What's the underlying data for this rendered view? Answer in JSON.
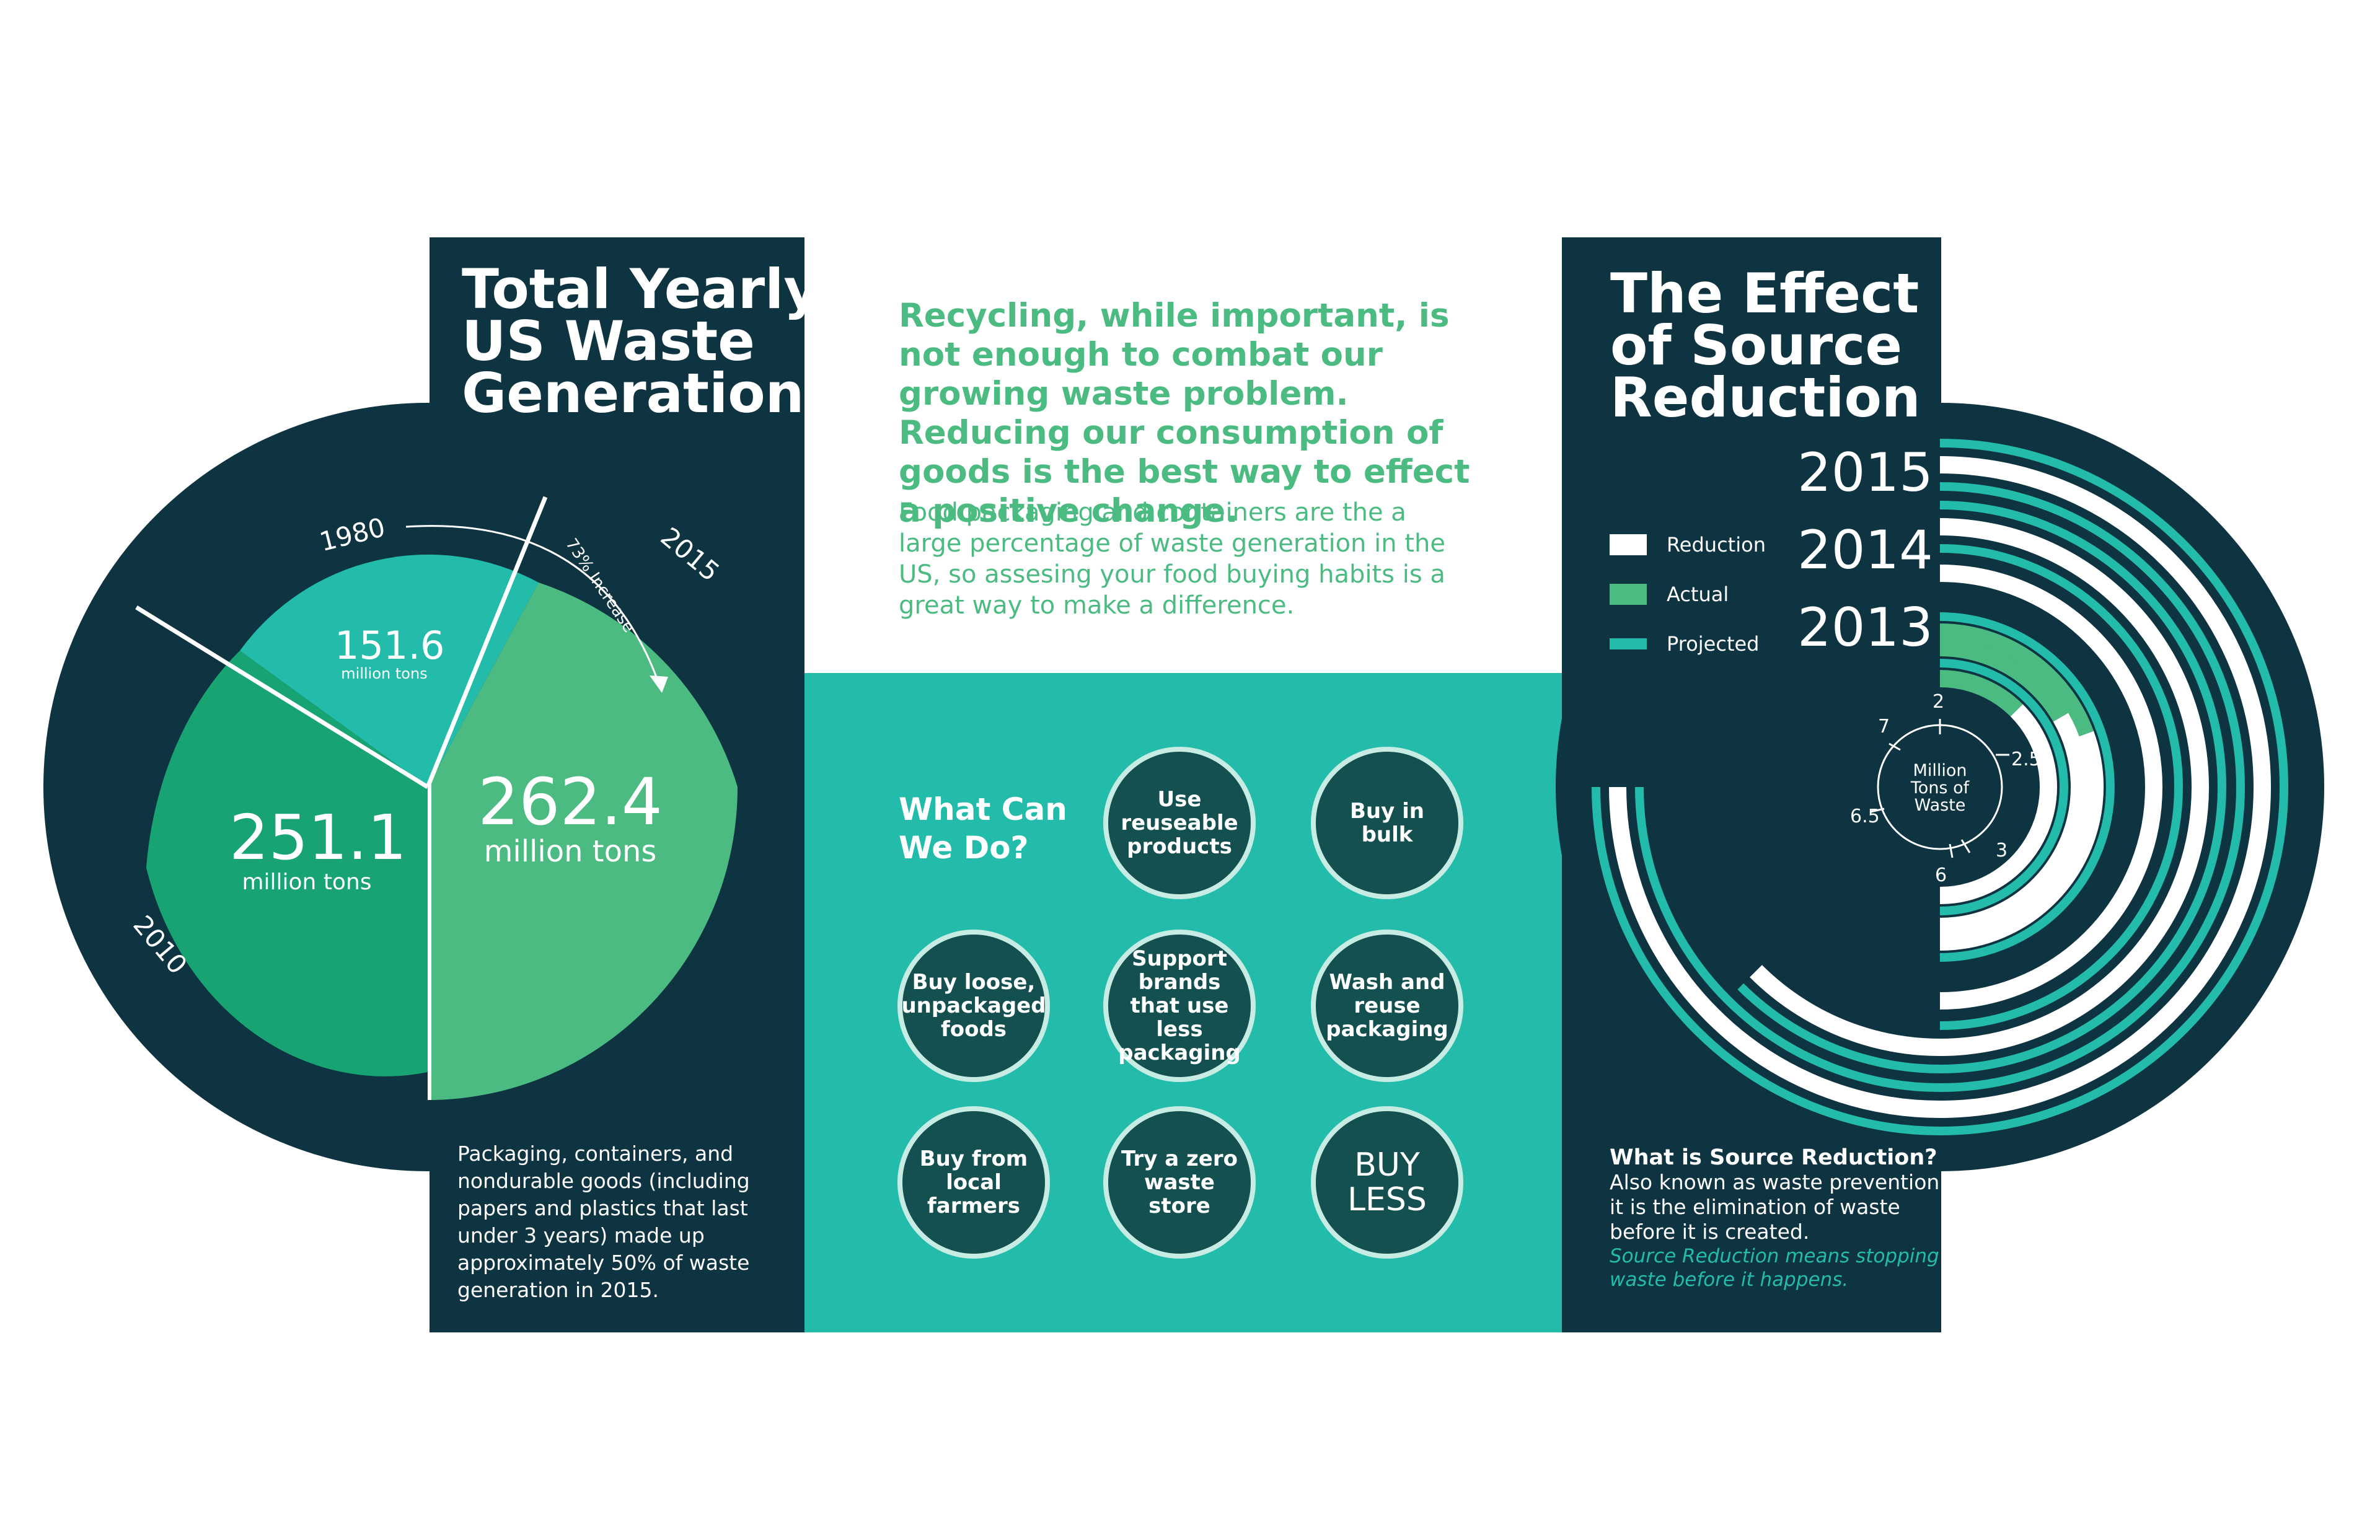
{
  "left_panel": {
    "title_lines": [
      "Total Yearly",
      "US Waste",
      "Generation"
    ],
    "pie": {
      "slices": [
        {
          "year": "1980",
          "value_label": "151.6",
          "unit_label": "million tons",
          "color": "#23bba9"
        },
        {
          "year": "2010",
          "value_label": "251.1",
          "unit_label": "million tons",
          "color": "#17a372"
        },
        {
          "year": "2015",
          "value_label": "262.4",
          "unit_label": "million tons",
          "color": "#4cbb82"
        }
      ],
      "increase_label": "73% Increase"
    },
    "footnote": "Packaging, containers, and nondurable goods (including papers and plastics that last under 3 years) made up approximately 50% of waste generation in 2015."
  },
  "center_panel": {
    "lead_part1": "Recycling, while important, is not enough to combat our growing waste problem. ",
    "lead_bold": "Reducing",
    "lead_part2": " our consumption of goods is the best way to effect a positive change.",
    "sub": "Food packaging and containers are the a large percentage of waste generation in the US, so assesing your food buying habits is a great way to make a difference.",
    "what_can_we_do": [
      "What Can",
      "We Do?"
    ],
    "actions": [
      "Use reuseable products",
      "Buy in bulk",
      "Buy loose, unpackaged foods",
      "Support brands that use less packaging",
      "Wash and reuse packaging",
      "Buy from local farmers",
      "Try a zero waste store",
      "BUY LESS"
    ]
  },
  "right_panel": {
    "title_lines": [
      "The Effect",
      "of Source",
      "Reduction"
    ],
    "legend": [
      {
        "label": "Reduction",
        "color": "#ffffff"
      },
      {
        "label": "Actual",
        "color": "#4cbb82"
      },
      {
        "label": "Projected",
        "color": "#23bba9"
      }
    ],
    "years": [
      "2015",
      "2014",
      "2013"
    ],
    "scale": {
      "center_label_lines": [
        "Million",
        "Tons of",
        "Waste"
      ],
      "ticks": [
        "2",
        "2.5",
        "3",
        "6",
        "6.5",
        "7"
      ]
    },
    "what_is_heading": "What is Source Reduction?",
    "what_is_body": "Also known as waste prevention, it is the elimination of waste before it is created.",
    "what_is_italic": "Source Reduction means stopping waste before it happens."
  },
  "colors": {
    "navy": "#0e3441",
    "teal": "#23bba9",
    "green": "#4cbb82",
    "dark_green": "#17a372",
    "circle_fill": "#13504f"
  }
}
